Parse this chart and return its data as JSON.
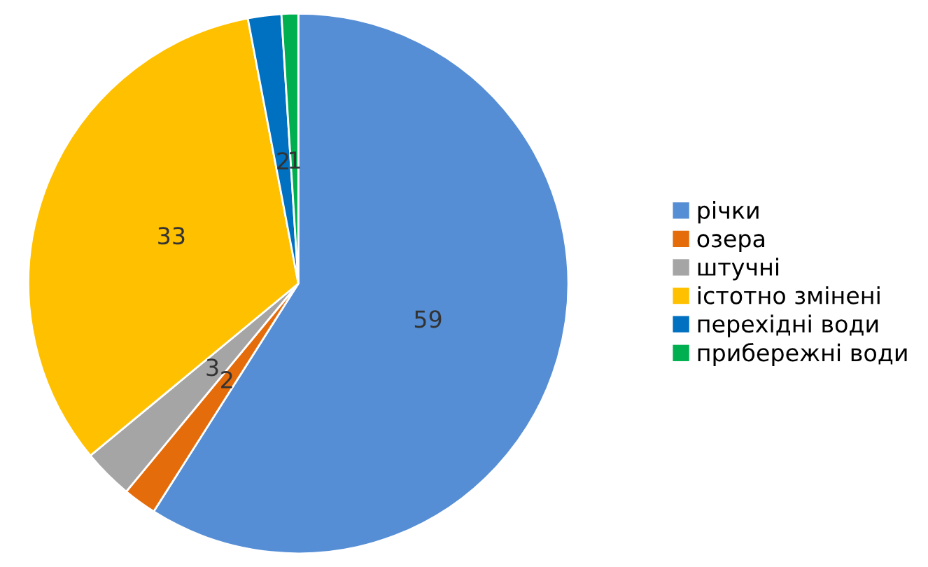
{
  "chart_data": {
    "type": "pie",
    "categories": [
      "річки",
      "озера",
      "штучні",
      "істотно змінені",
      "перехідні води",
      "прибережні води"
    ],
    "values": [
      59,
      2,
      3,
      33,
      2,
      1
    ],
    "colors": [
      "#558ed5",
      "#e46c0a",
      "#a5a5a5",
      "#ffc000",
      "#0070c0",
      "#00b050"
    ],
    "data_labels": true,
    "legend": "right"
  }
}
